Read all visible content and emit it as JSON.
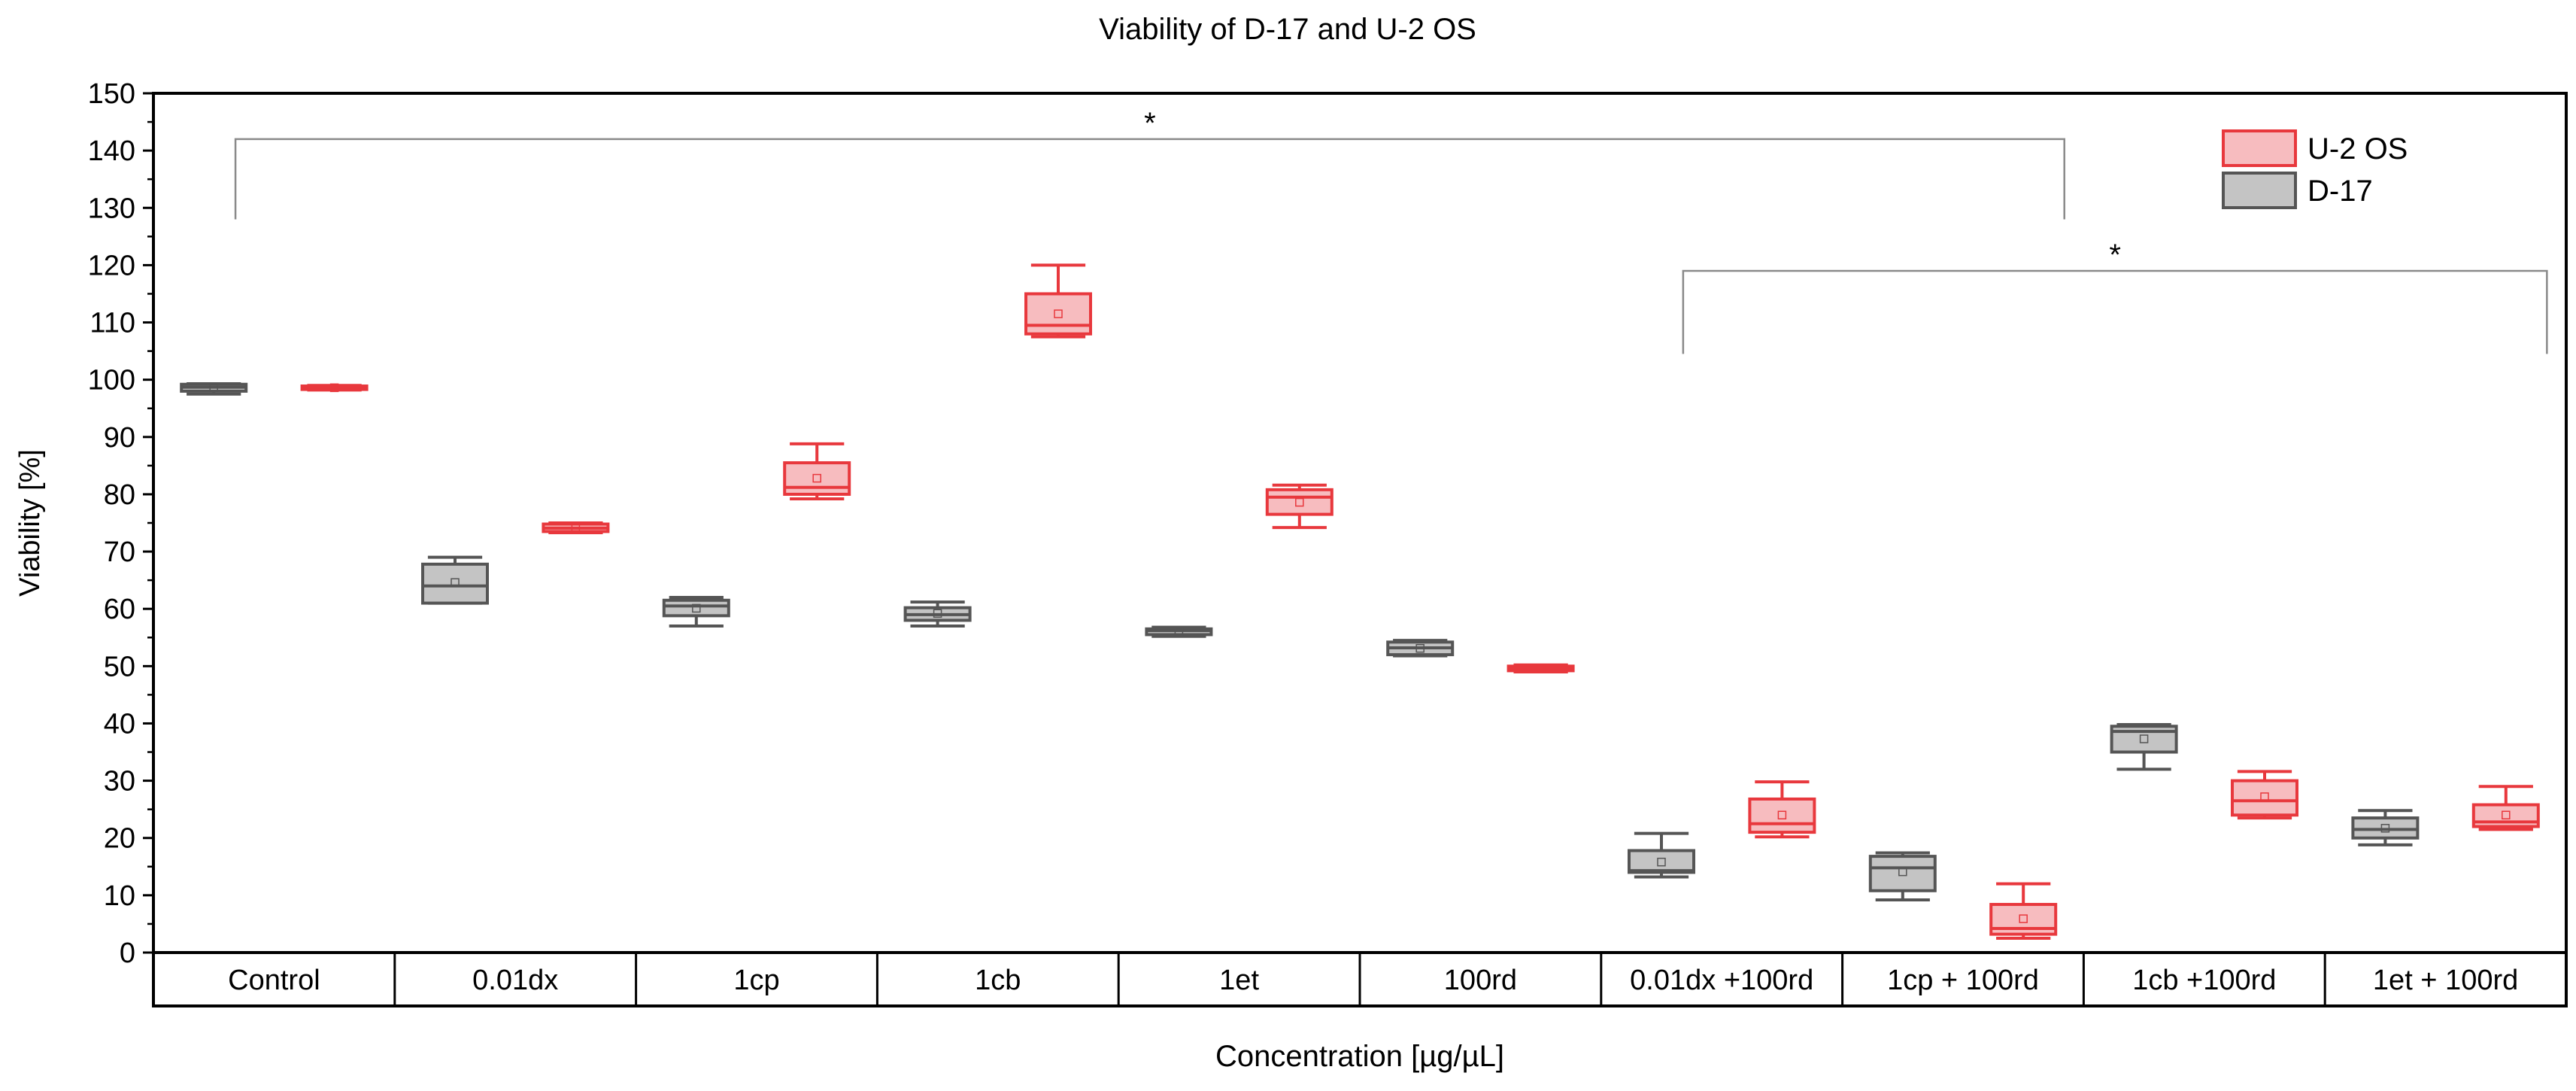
{
  "chart_data": {
    "type": "box",
    "title": "Viability of D-17 and U-2 OS",
    "xlabel": "Concentration [µg/µL]",
    "ylabel": "Viability [%]",
    "ylim": [
      0,
      150
    ],
    "yticks": [
      0,
      10,
      20,
      30,
      40,
      50,
      60,
      70,
      80,
      90,
      100,
      110,
      120,
      130,
      140,
      150
    ],
    "categories": [
      "Control",
      "0.01dx",
      "1cp",
      "1cb",
      "1et",
      "100rd",
      "0.01dx +100rd",
      "1cp + 100rd",
      "1cb +100rd",
      "1et + 100rd"
    ],
    "legend": {
      "position": "top-right"
    },
    "series": [
      {
        "name": "D-17",
        "color": "#555555",
        "fill": "#c4c4c4",
        "boxes": [
          {
            "min": 97.5,
            "q1": 98.0,
            "median": 98.7,
            "q3": 99.2,
            "max": 99.3,
            "mean": 98.6
          },
          {
            "min": 61.0,
            "q1": 61.0,
            "median": 64.0,
            "q3": 67.8,
            "max": 69.0,
            "mean": 64.6
          },
          {
            "min": 57.0,
            "q1": 58.8,
            "median": 60.5,
            "q3": 61.5,
            "max": 62.0,
            "mean": 60.1
          },
          {
            "min": 57.0,
            "q1": 58.0,
            "median": 59.0,
            "q3": 60.2,
            "max": 61.2,
            "mean": 59.2
          },
          {
            "min": 55.2,
            "q1": 55.5,
            "median": 56.2,
            "q3": 56.5,
            "max": 56.8,
            "mean": 56.0
          },
          {
            "min": 51.8,
            "q1": 52.0,
            "median": 53.2,
            "q3": 54.2,
            "max": 54.5,
            "mean": 53.1
          },
          {
            "min": 13.2,
            "q1": 14.0,
            "median": 14.3,
            "q3": 17.8,
            "max": 20.8,
            "mean": 15.8
          },
          {
            "min": 9.2,
            "q1": 10.8,
            "median": 14.8,
            "q3": 16.8,
            "max": 17.4,
            "mean": 14.1
          },
          {
            "min": 32.0,
            "q1": 35.0,
            "median": 38.6,
            "q3": 39.5,
            "max": 39.8,
            "mean": 37.3
          },
          {
            "min": 18.8,
            "q1": 20.0,
            "median": 21.5,
            "q3": 23.5,
            "max": 24.8,
            "mean": 21.7
          }
        ]
      },
      {
        "name": "U-2 OS",
        "color": "#e8383d",
        "fill": "#f7bcbf",
        "boxes": [
          {
            "min": 98.2,
            "q1": 98.3,
            "median": 98.7,
            "q3": 98.9,
            "max": 99.0,
            "mean": 98.6
          },
          {
            "min": 73.3,
            "q1": 73.5,
            "median": 74.1,
            "q3": 74.8,
            "max": 75.0,
            "mean": 74.1
          },
          {
            "min": 79.2,
            "q1": 80.0,
            "median": 81.2,
            "q3": 85.5,
            "max": 88.8,
            "mean": 82.8
          },
          {
            "min": 107.5,
            "q1": 108.0,
            "median": 109.5,
            "q3": 115.0,
            "max": 120.0,
            "mean": 111.5
          },
          {
            "min": 74.2,
            "q1": 76.5,
            "median": 79.5,
            "q3": 80.8,
            "max": 81.6,
            "mean": 78.6
          },
          {
            "min": 49.0,
            "q1": 49.2,
            "median": 49.7,
            "q3": 50.0,
            "max": 50.2,
            "mean": 49.6
          },
          {
            "min": 20.2,
            "q1": 21.0,
            "median": 22.5,
            "q3": 26.8,
            "max": 29.8,
            "mean": 24.0
          },
          {
            "min": 2.5,
            "q1": 3.2,
            "median": 4.2,
            "q3": 8.4,
            "max": 12.0,
            "mean": 5.9
          },
          {
            "min": 23.5,
            "q1": 24.0,
            "median": 26.5,
            "q3": 30.0,
            "max": 31.6,
            "mean": 27.2
          },
          {
            "min": 21.5,
            "q1": 22.0,
            "median": 22.8,
            "q3": 25.8,
            "max": 29.0,
            "mean": 24.0
          }
        ]
      }
    ],
    "annotations": [
      {
        "text": "*",
        "from_category": 0,
        "to_category": 7,
        "y_bracket": 142,
        "y_left_end": 128,
        "y_right_end": 128
      },
      {
        "text": "*",
        "from_category": 6,
        "to_category": 9,
        "y_bracket": 119,
        "y_left_end": 104.5,
        "y_right_end": 104.5
      }
    ]
  }
}
